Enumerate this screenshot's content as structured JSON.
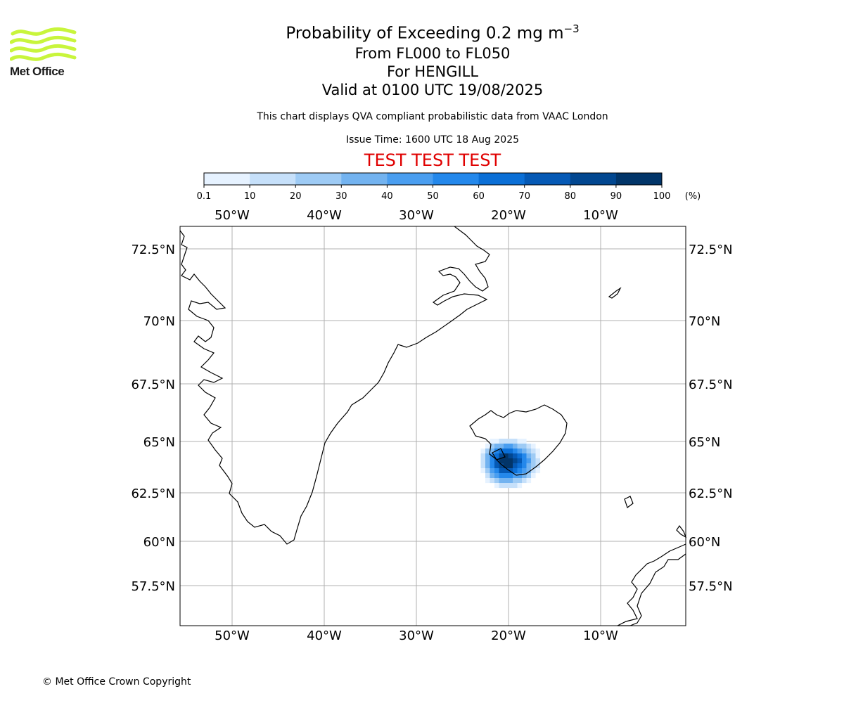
{
  "branding": {
    "org_name": "Met Office",
    "logo_color": "#c8f53c",
    "copyright": "© Met Office Crown Copyright"
  },
  "header": {
    "title_prefix": "Probability of Exceeding 0.2 mg m",
    "title_superscript": "−3",
    "level_range": "From FL000 to FL050",
    "volcano": "For HENGILL",
    "valid_time": "Valid at 0100 UTC 19/08/2025",
    "disclaimer": "This chart displays QVA compliant probabilistic data from VAAC London",
    "issue_time": "Issue Time: 1600 UTC 18 Aug 2025",
    "test_banner": "TEST TEST TEST",
    "test_color": "#e00000"
  },
  "colorbar": {
    "ticks": [
      "0.1",
      "10",
      "20",
      "30",
      "40",
      "50",
      "60",
      "70",
      "80",
      "90",
      "100"
    ],
    "unit": "(%)",
    "colors": [
      "#e6f2ff",
      "#c6e0fa",
      "#9ecbf5",
      "#73b3f0",
      "#4a9ef0",
      "#2488eb",
      "#0b6fd6",
      "#0559b5",
      "#024790",
      "#023569"
    ]
  },
  "map": {
    "lon_labels": [
      "50°W",
      "40°W",
      "30°W",
      "20°W",
      "10°W"
    ],
    "lat_labels": [
      "72.5°N",
      "70°N",
      "67.5°N",
      "65°N",
      "62.5°N",
      "60°N",
      "57.5°N"
    ],
    "gridline_color": "#b0b0b0"
  }
}
